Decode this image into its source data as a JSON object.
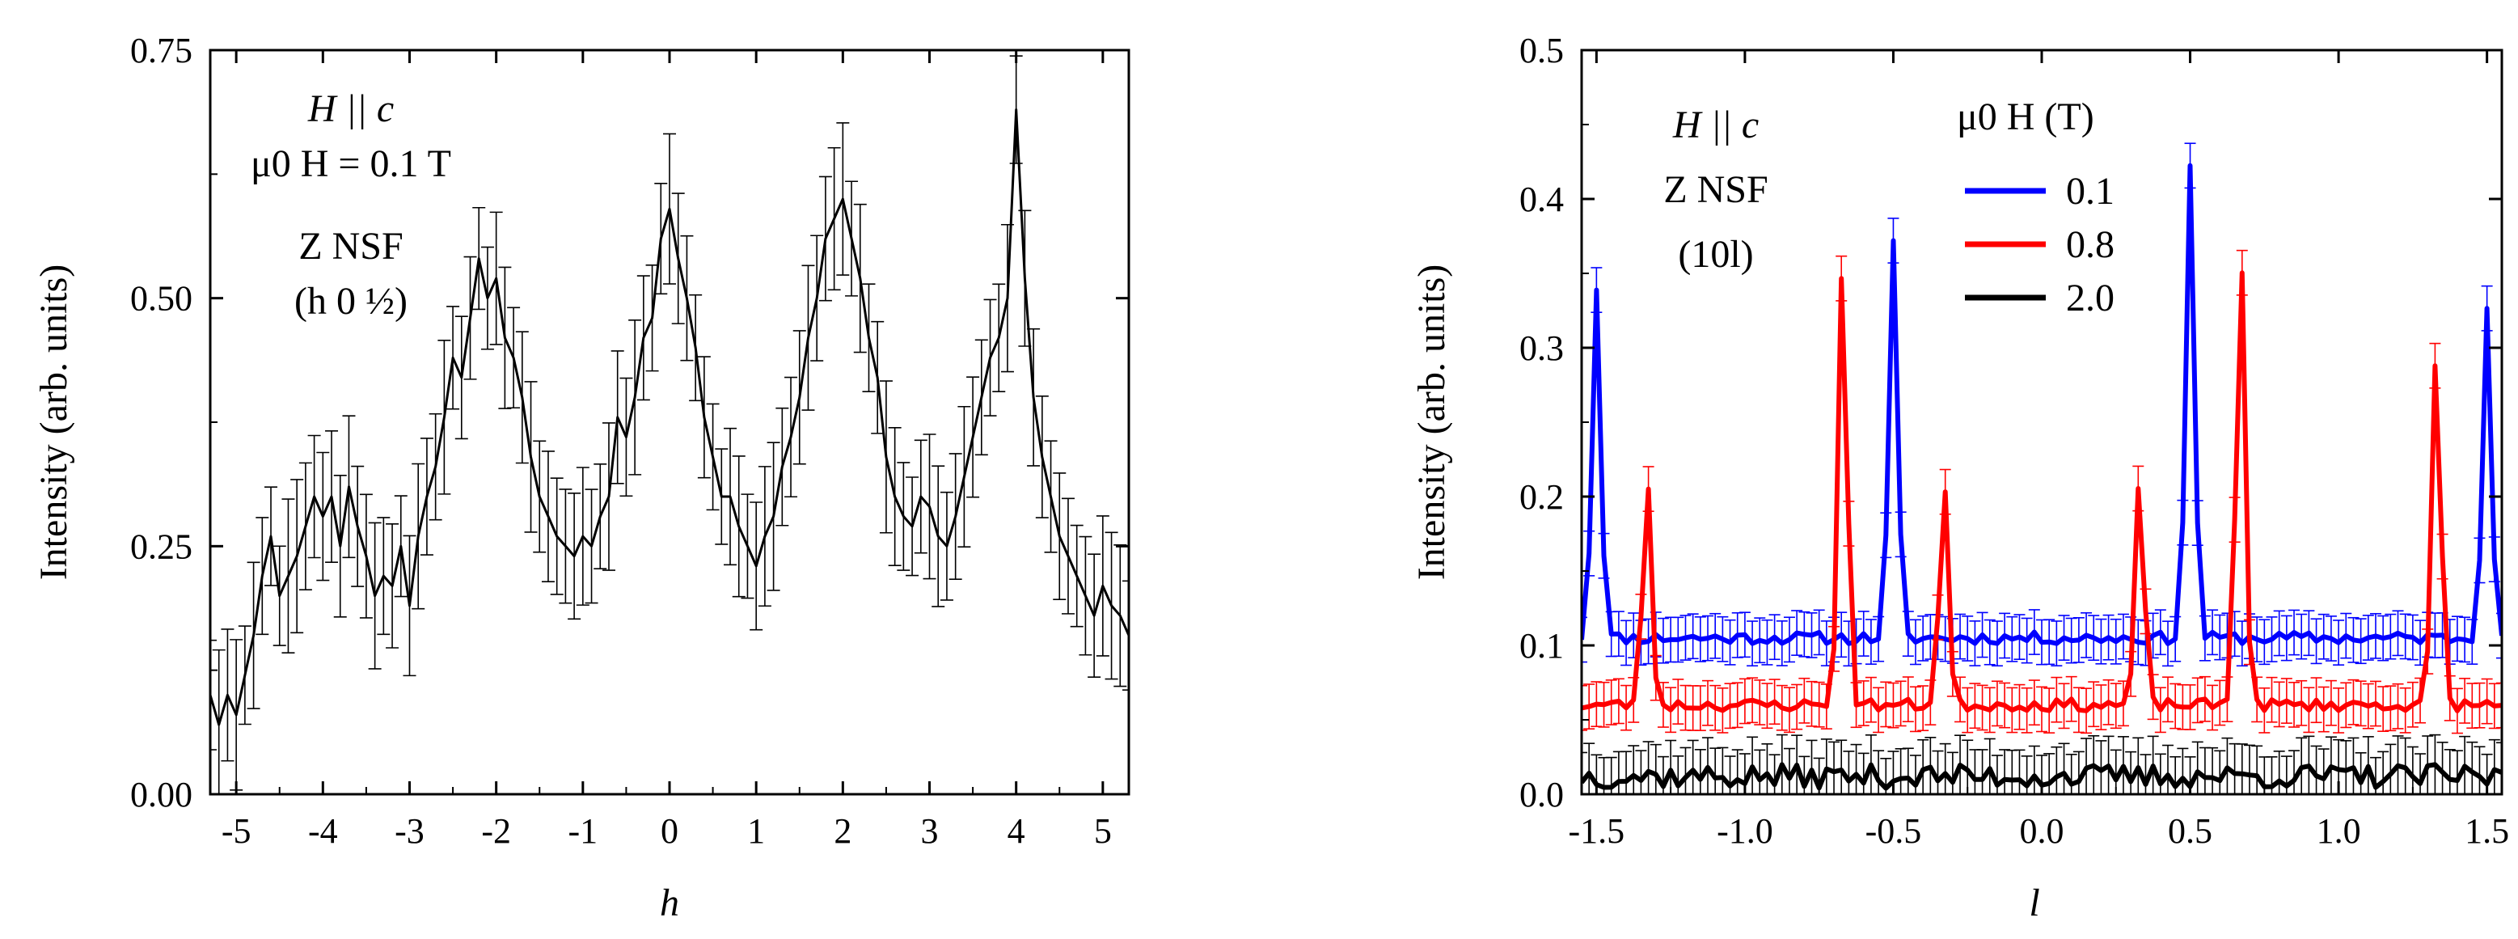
{
  "chart_data": [
    {
      "type": "line",
      "xlabel": "h",
      "ylabel": "Intensity (arb. units)",
      "xlim": [
        -5.3,
        5.3
      ],
      "ylim": [
        0,
        0.75
      ],
      "xticks": [
        -5,
        -4,
        -3,
        -2,
        -1,
        0,
        1,
        2,
        3,
        4,
        5
      ],
      "xtick_labels": [
        "-5",
        "-4",
        "-3",
        "-2",
        "-1",
        "0",
        "1",
        "2",
        "3",
        "4",
        "5"
      ],
      "yticks": [
        0,
        0.25,
        0.5,
        0.75
      ],
      "ytick_labels": [
        "0.00",
        "0.25",
        "0.50",
        "0.75"
      ],
      "annotations": [
        "H || c",
        "μ0 H = 0.1 T",
        "Z NSF",
        "(h 0 ½)"
      ],
      "series": [
        {
          "name": "0.1 T",
          "color": "#000000",
          "error_bar": 0.06,
          "x": [
            -5.3,
            -5.2,
            -5.1,
            -5.0,
            -4.9,
            -4.8,
            -4.7,
            -4.6,
            -4.5,
            -4.4,
            -4.3,
            -4.2,
            -4.1,
            -4.0,
            -3.9,
            -3.8,
            -3.7,
            -3.6,
            -3.5,
            -3.4,
            -3.3,
            -3.2,
            -3.1,
            -3.0,
            -2.9,
            -2.8,
            -2.7,
            -2.6,
            -2.5,
            -2.4,
            -2.3,
            -2.2,
            -2.1,
            -2.0,
            -1.9,
            -1.8,
            -1.7,
            -1.6,
            -1.5,
            -1.4,
            -1.3,
            -1.2,
            -1.1,
            -1.0,
            -0.9,
            -0.8,
            -0.7,
            -0.6,
            -0.5,
            -0.4,
            -0.3,
            -0.2,
            -0.1,
            0.0,
            0.1,
            0.2,
            0.3,
            0.4,
            0.5,
            0.6,
            0.7,
            0.8,
            0.9,
            1.0,
            1.1,
            1.2,
            1.3,
            1.4,
            1.5,
            1.6,
            1.7,
            1.8,
            1.9,
            2.0,
            2.1,
            2.2,
            2.3,
            2.4,
            2.5,
            2.6,
            2.7,
            2.8,
            2.9,
            3.0,
            3.1,
            3.2,
            3.3,
            3.4,
            3.5,
            3.6,
            3.7,
            3.8,
            3.9,
            4.0,
            4.1,
            4.2,
            4.3,
            4.4,
            4.5,
            4.6,
            4.7,
            4.8,
            4.9,
            5.0,
            5.1,
            5.2,
            5.3
          ],
          "y": [
            0.1,
            0.07,
            0.1,
            0.08,
            0.12,
            0.16,
            0.22,
            0.26,
            0.2,
            0.22,
            0.24,
            0.27,
            0.3,
            0.28,
            0.3,
            0.25,
            0.31,
            0.27,
            0.24,
            0.2,
            0.22,
            0.21,
            0.25,
            0.19,
            0.26,
            0.3,
            0.33,
            0.38,
            0.44,
            0.42,
            0.48,
            0.54,
            0.5,
            0.52,
            0.46,
            0.44,
            0.4,
            0.34,
            0.3,
            0.28,
            0.26,
            0.25,
            0.24,
            0.26,
            0.25,
            0.28,
            0.3,
            0.38,
            0.36,
            0.4,
            0.46,
            0.48,
            0.56,
            0.59,
            0.54,
            0.5,
            0.45,
            0.38,
            0.34,
            0.3,
            0.3,
            0.27,
            0.25,
            0.23,
            0.26,
            0.28,
            0.33,
            0.36,
            0.4,
            0.46,
            0.5,
            0.56,
            0.58,
            0.6,
            0.56,
            0.52,
            0.46,
            0.42,
            0.34,
            0.3,
            0.28,
            0.27,
            0.3,
            0.29,
            0.26,
            0.25,
            0.28,
            0.32,
            0.36,
            0.4,
            0.44,
            0.46,
            0.5,
            0.69,
            0.52,
            0.4,
            0.34,
            0.3,
            0.26,
            0.24,
            0.22,
            0.2,
            0.18,
            0.21,
            0.19,
            0.18,
            0.16
          ]
        }
      ]
    },
    {
      "type": "line",
      "xlabel": "l",
      "ylabel": "Intensity (arb. units)",
      "xlim": [
        -1.55,
        1.55
      ],
      "ylim": [
        0,
        0.5
      ],
      "xticks": [
        -1.5,
        -1.0,
        -0.5,
        0.0,
        0.5,
        1.0,
        1.5
      ],
      "xtick_labels": [
        "-1.5",
        "-1.0",
        "-0.5",
        "0.0",
        "0.5",
        "1.0",
        "1.5"
      ],
      "yticks": [
        0.0,
        0.1,
        0.2,
        0.3,
        0.4,
        0.5
      ],
      "ytick_labels": [
        "0.0",
        "0.1",
        "0.2",
        "0.3",
        "0.4",
        "0.5"
      ],
      "annotations": [
        "H || c",
        "Z NSF",
        "(10l)"
      ],
      "legend_title": "μ0 H (T)",
      "legend_placement": "top-right",
      "series": [
        {
          "name": "0.1",
          "color": "#0000ff",
          "baseline": 0.105,
          "error_bar": 0.015,
          "peaks": [
            {
              "center": -1.5,
              "height": 0.34
            },
            {
              "center": -0.5,
              "height": 0.37
            },
            {
              "center": 0.5,
              "height": 0.42
            },
            {
              "center": 1.5,
              "height": 0.33
            }
          ]
        },
        {
          "name": "0.8",
          "color": "#ff0000",
          "baseline": 0.06,
          "error_bar": 0.015,
          "peaks": [
            {
              "center": -1.33,
              "height": 0.21
            },
            {
              "center": -0.67,
              "height": 0.36
            },
            {
              "center": -0.33,
              "height": 0.21
            },
            {
              "center": 0.33,
              "height": 0.21
            },
            {
              "center": 0.67,
              "height": 0.37
            },
            {
              "center": 1.33,
              "height": 0.3
            }
          ]
        },
        {
          "name": "2.0",
          "color": "#000000",
          "baseline": 0.012,
          "error_bar": 0.02,
          "peaks": []
        }
      ]
    }
  ]
}
